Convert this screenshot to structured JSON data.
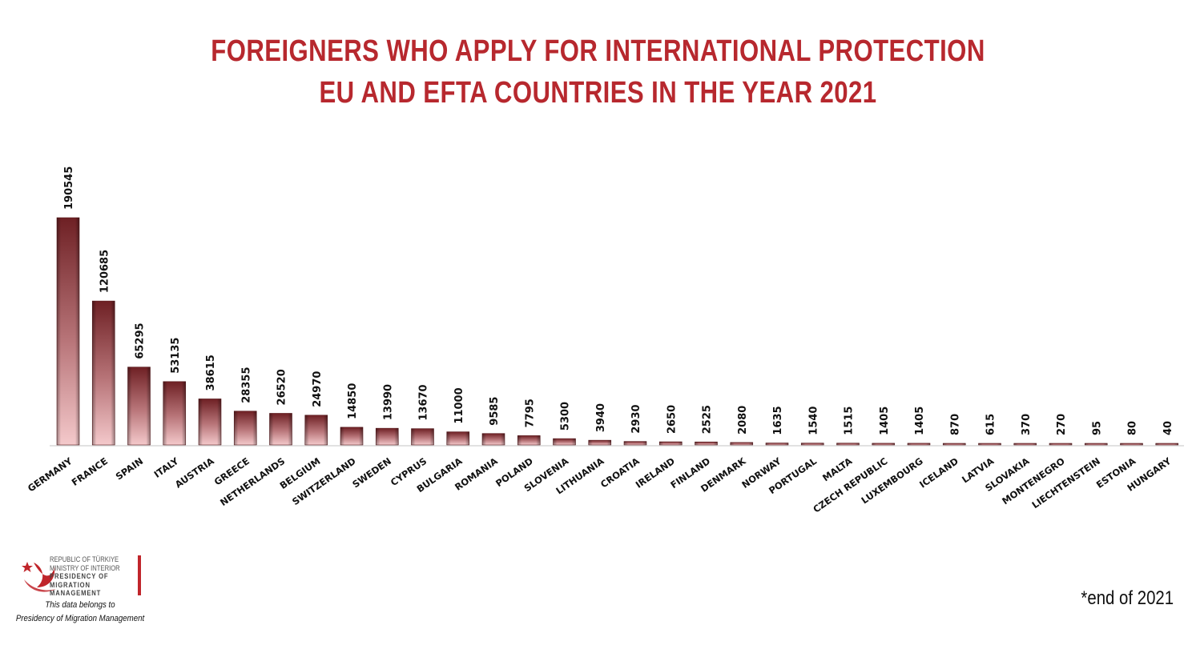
{
  "title_line1": "FOREIGNERS WHO APPLY FOR INTERNATIONAL PROTECTION",
  "title_line2": "EU AND EFTA COUNTRIES IN THE YEAR 2021",
  "note": "*end of 2021",
  "org": {
    "line1": "REPUBLIC OF TÜRKIYE",
    "line2": "MINISTRY OF INTERIOR",
    "line3": "PRESIDENCY OF",
    "line4": "MIGRATION MANAGEMENT",
    "credit1": "This data belongs to",
    "credit2": "Presidency of Migration Management"
  },
  "colors": {
    "title": "#b7282e",
    "bar_dark": "#6e2024",
    "bar_light": "#f2c4c6",
    "accent": "#c0252b"
  },
  "chart_data": {
    "type": "bar",
    "categories": [
      "GERMANY",
      "FRANCE",
      "SPAIN",
      "ITALY",
      "AUSTRIA",
      "GREECE",
      "NETHERLANDS",
      "BELGIUM",
      "SWITZERLAND",
      "SWEDEN",
      "CYPRUS",
      "BULGARIA",
      "ROMANIA",
      "POLAND",
      "SLOVENIA",
      "LITHUANIA",
      "CROATIA",
      "IRELAND",
      "FINLAND",
      "DENMARK",
      "NORWAY",
      "PORTUGAL",
      "MALTA",
      "CZECH REPUBLIC",
      "LUXEMBOURG",
      "ICELAND",
      "LATVIA",
      "SLOVAKIA",
      "MONTENEGRO",
      "LIECHTENSTEIN",
      "ESTONIA",
      "HUNGARY"
    ],
    "values": [
      190545,
      120685,
      65295,
      53135,
      38615,
      28355,
      26520,
      24970,
      14850,
      13990,
      13670,
      11000,
      9585,
      7795,
      5300,
      3940,
      2930,
      2650,
      2525,
      2080,
      1635,
      1540,
      1515,
      1405,
      1405,
      870,
      615,
      370,
      270,
      95,
      80,
      40
    ],
    "data_labels": true,
    "grid": false,
    "legend": "none"
  }
}
